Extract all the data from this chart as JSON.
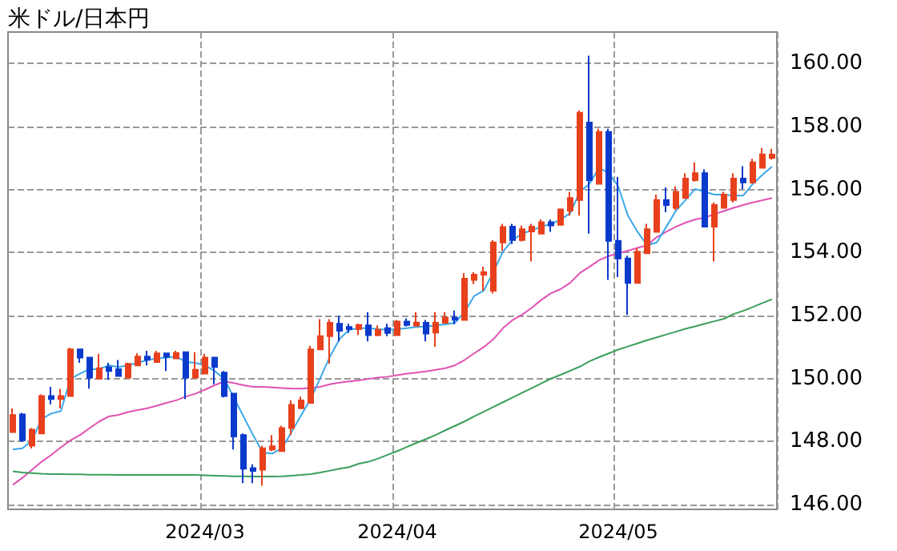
{
  "chart_data": {
    "type": "candlestick",
    "title": "米ドル/日本円",
    "categories": [
      null,
      null,
      null,
      null,
      null,
      null,
      null,
      null,
      null,
      null,
      null,
      null,
      null,
      null,
      null,
      null,
      null,
      null,
      null,
      null,
      "2024/03",
      null,
      null,
      null,
      null,
      null,
      null,
      null,
      null,
      null,
      null,
      null,
      null,
      null,
      null,
      null,
      null,
      null,
      null,
      null,
      "2024/04",
      null,
      null,
      null,
      null,
      null,
      null,
      null,
      null,
      null,
      null,
      null,
      null,
      null,
      null,
      null,
      null,
      null,
      null,
      null,
      null,
      null,
      null,
      "2024/05",
      null,
      null,
      null,
      null,
      null,
      null,
      null,
      null,
      null,
      null,
      null,
      null,
      null,
      null,
      null,
      null
    ],
    "ylim": [
      145.85,
      161.0
    ],
    "yticks": [
      {
        "value": 146,
        "label": "146.00"
      },
      {
        "value": 148,
        "label": "148.00"
      },
      {
        "value": 150,
        "label": "150.00"
      },
      {
        "value": 152,
        "label": "152.00"
      },
      {
        "value": 154,
        "label": "154.00"
      },
      {
        "value": 156,
        "label": "156.00"
      },
      {
        "value": 158,
        "label": "158.00"
      },
      {
        "value": 160,
        "label": "160.00"
      }
    ],
    "grid": true,
    "marker": "none",
    "line_style": "solid",
    "series": [
      {
        "type": "line",
        "color": "#e052b4",
        "values": [
          146.63,
          146.85,
          147.11,
          147.36,
          147.58,
          147.82,
          148.04,
          148.21,
          148.43,
          148.64,
          148.8,
          148.85,
          148.94,
          149.0,
          149.06,
          149.14,
          149.23,
          149.31,
          149.43,
          149.52,
          149.65,
          149.79,
          149.91,
          149.86,
          149.79,
          149.74,
          149.74,
          149.72,
          149.7,
          149.68,
          149.68,
          149.7,
          149.74,
          149.82,
          149.87,
          149.91,
          149.94,
          149.99,
          150.03,
          150.06,
          150.11,
          150.16,
          150.19,
          150.23,
          150.28,
          150.33,
          150.42,
          150.59,
          150.8,
          151.0,
          151.25,
          151.6,
          151.86,
          152.03,
          152.25,
          152.5,
          152.71,
          152.84,
          153.04,
          153.35,
          153.55,
          153.76,
          153.89,
          153.98,
          154.06,
          154.15,
          154.23,
          154.49,
          154.66,
          154.82,
          154.95,
          155.05,
          155.11,
          155.22,
          155.32,
          155.42,
          155.51,
          155.59,
          155.66,
          155.73
        ]
      },
      {
        "type": "line",
        "color": "#3a9e5c",
        "values": [
          147.06,
          147.02,
          147.0,
          146.98,
          146.97,
          146.97,
          146.96,
          146.96,
          146.95,
          146.95,
          146.95,
          146.94,
          146.94,
          146.94,
          146.94,
          146.94,
          146.94,
          146.94,
          146.94,
          146.94,
          146.93,
          146.92,
          146.91,
          146.9,
          146.9,
          146.89,
          146.89,
          146.89,
          146.9,
          146.92,
          146.94,
          146.97,
          147.02,
          147.08,
          147.14,
          147.19,
          147.3,
          147.36,
          147.46,
          147.58,
          147.7,
          147.83,
          147.96,
          148.08,
          148.21,
          148.36,
          148.5,
          148.64,
          148.8,
          148.95,
          149.1,
          149.25,
          149.4,
          149.55,
          149.7,
          149.85,
          150.0,
          150.12,
          150.25,
          150.38,
          150.55,
          150.68,
          150.8,
          150.92,
          151.02,
          151.12,
          151.22,
          151.31,
          151.4,
          151.49,
          151.58,
          151.66,
          151.74,
          151.82,
          151.9,
          152.05,
          152.15,
          152.27,
          152.4,
          152.52
        ]
      },
      {
        "type": "line",
        "color": "#3aa8e8",
        "values": [
          147.75,
          147.79,
          148.04,
          148.72,
          148.89,
          148.97,
          149.99,
          150.16,
          150.3,
          150.3,
          150.42,
          150.37,
          150.42,
          150.5,
          150.59,
          150.64,
          150.67,
          150.7,
          150.53,
          150.5,
          150.42,
          150.24,
          149.99,
          149.4,
          148.8,
          148.21,
          147.65,
          147.62,
          147.79,
          148.3,
          148.84,
          149.35,
          150.03,
          150.7,
          151.26,
          151.55,
          151.6,
          151.6,
          151.57,
          151.55,
          151.57,
          151.6,
          151.64,
          151.65,
          151.69,
          151.72,
          151.77,
          152.11,
          152.62,
          152.79,
          153.38,
          154.03,
          154.4,
          154.6,
          154.71,
          154.82,
          154.91,
          155.05,
          155.25,
          155.93,
          156.18,
          156.69,
          156.52,
          156.1,
          155.17,
          154.66,
          154.23,
          154.32,
          154.82,
          155.33,
          155.67,
          156.02,
          155.93,
          155.84,
          155.84,
          155.81,
          155.81,
          156.18,
          156.47,
          156.73
        ]
      },
      {
        "ohlc": [
          [
            148.3,
            149.05,
            148.28,
            148.84
          ],
          [
            148.86,
            148.91,
            147.99,
            148.04
          ],
          [
            147.87,
            148.43,
            147.78,
            148.38
          ],
          [
            148.26,
            149.5,
            148.26,
            149.45
          ],
          [
            149.45,
            149.74,
            149.18,
            149.35
          ],
          [
            149.35,
            149.67,
            149.06,
            149.45
          ],
          [
            149.45,
            150.98,
            149.45,
            150.93
          ],
          [
            150.93,
            150.93,
            150.5,
            150.67
          ],
          [
            150.67,
            150.67,
            149.68,
            150.03
          ],
          [
            150.0,
            150.79,
            150.0,
            150.33
          ],
          [
            150.36,
            150.5,
            149.96,
            150.24
          ],
          [
            150.3,
            150.59,
            150.08,
            150.08
          ],
          [
            150.03,
            150.5,
            150.03,
            150.47
          ],
          [
            150.42,
            150.8,
            150.42,
            150.7
          ],
          [
            150.7,
            150.88,
            150.42,
            150.6
          ],
          [
            150.53,
            150.88,
            150.53,
            150.8
          ],
          [
            150.8,
            150.8,
            150.24,
            150.69
          ],
          [
            150.64,
            150.88,
            150.64,
            150.81
          ],
          [
            150.84,
            150.84,
            149.35,
            150.03
          ],
          [
            150.03,
            150.84,
            150.03,
            150.28
          ],
          [
            150.16,
            150.79,
            150.16,
            150.67
          ],
          [
            150.67,
            150.67,
            149.82,
            150.37
          ],
          [
            150.19,
            150.24,
            149.4,
            149.45
          ],
          [
            149.52,
            149.52,
            147.75,
            148.16
          ],
          [
            148.21,
            148.26,
            146.68,
            147.14
          ],
          [
            147.16,
            147.28,
            146.68,
            147.07
          ],
          [
            147.11,
            147.87,
            146.6,
            147.79
          ],
          [
            147.75,
            148.21,
            147.7,
            147.85
          ],
          [
            147.7,
            148.5,
            147.7,
            148.43
          ],
          [
            148.43,
            149.31,
            148.21,
            149.17
          ],
          [
            149.06,
            149.43,
            149.06,
            149.31
          ],
          [
            149.23,
            151.04,
            149.23,
            150.93
          ],
          [
            150.93,
            151.89,
            150.93,
            151.35
          ],
          [
            151.35,
            151.89,
            150.47,
            151.77
          ],
          [
            151.74,
            151.99,
            151.18,
            151.52
          ],
          [
            151.64,
            151.74,
            151.45,
            151.57
          ],
          [
            151.57,
            151.74,
            151.38,
            151.7
          ],
          [
            151.69,
            152.11,
            151.18,
            151.38
          ],
          [
            151.38,
            151.69,
            151.35,
            151.55
          ],
          [
            151.6,
            151.74,
            151.35,
            151.45
          ],
          [
            151.38,
            151.86,
            151.38,
            151.81
          ],
          [
            151.81,
            151.91,
            151.65,
            151.7
          ],
          [
            151.68,
            152.11,
            151.68,
            151.78
          ],
          [
            151.77,
            151.86,
            151.18,
            151.43
          ],
          [
            151.46,
            152.11,
            151.01,
            151.77
          ],
          [
            151.77,
            152.11,
            151.77,
            151.94
          ],
          [
            151.94,
            152.16,
            151.72,
            151.87
          ],
          [
            151.86,
            153.35,
            151.86,
            153.17
          ],
          [
            153.13,
            153.38,
            153.0,
            153.3
          ],
          [
            153.3,
            153.55,
            152.79,
            153.38
          ],
          [
            152.79,
            154.4,
            152.7,
            154.32
          ],
          [
            154.32,
            154.91,
            154.06,
            154.81
          ],
          [
            154.82,
            154.91,
            154.27,
            154.4
          ],
          [
            154.4,
            154.86,
            154.35,
            154.74
          ],
          [
            154.67,
            154.91,
            153.72,
            154.82
          ],
          [
            154.6,
            155.05,
            154.6,
            154.96
          ],
          [
            154.96,
            155.05,
            154.66,
            154.86
          ],
          [
            154.88,
            155.4,
            154.88,
            155.37
          ],
          [
            155.33,
            155.93,
            155.17,
            155.73
          ],
          [
            155.67,
            158.51,
            155.17,
            158.44
          ],
          [
            158.13,
            160.25,
            154.6,
            156.3
          ],
          [
            156.18,
            157.93,
            156.18,
            157.83
          ],
          [
            157.83,
            157.93,
            153.13,
            154.37
          ],
          [
            154.37,
            156.4,
            153.22,
            153.81
          ],
          [
            153.81,
            153.9,
            152.03,
            153.04
          ],
          [
            153.04,
            154.15,
            153.04,
            154.03
          ],
          [
            153.98,
            154.91,
            153.98,
            154.74
          ],
          [
            154.66,
            155.84,
            154.66,
            155.67
          ],
          [
            155.67,
            156.07,
            155.28,
            155.51
          ],
          [
            155.42,
            156.1,
            155.35,
            155.93
          ],
          [
            155.73,
            156.52,
            155.73,
            156.35
          ],
          [
            156.3,
            156.86,
            156.25,
            156.52
          ],
          [
            156.52,
            156.64,
            154.82,
            154.82
          ],
          [
            154.82,
            155.59,
            153.72,
            155.51
          ],
          [
            155.42,
            155.93,
            155.42,
            155.84
          ],
          [
            155.67,
            156.52,
            155.59,
            156.35
          ],
          [
            156.35,
            156.74,
            156.02,
            156.23
          ],
          [
            156.23,
            156.98,
            156.18,
            156.86
          ],
          [
            156.69,
            157.32,
            156.69,
            157.12
          ],
          [
            157.0,
            157.29,
            156.95,
            157.11
          ]
        ],
        "colors": [
          "#e8401c",
          "#0a3acc",
          "#e8401c",
          "#e8401c",
          "#0a3acc",
          "#e8401c",
          "#e8401c",
          "#0a3acc",
          "#0a3acc",
          "#e8401c",
          "#0a3acc",
          "#0a3acc",
          "#e8401c",
          "#e8401c",
          "#0a3acc",
          "#e8401c",
          "#0a3acc",
          "#e8401c",
          "#0a3acc",
          "#e8401c",
          "#e8401c",
          "#0a3acc",
          "#0a3acc",
          "#0a3acc",
          "#0a3acc",
          "#0a3acc",
          "#e8401c",
          "#e8401c",
          "#e8401c",
          "#e8401c",
          "#e8401c",
          "#e8401c",
          "#e8401c",
          "#e8401c",
          "#0a3acc",
          "#0a3acc",
          "#e8401c",
          "#0a3acc",
          "#e8401c",
          "#0a3acc",
          "#e8401c",
          "#0a3acc",
          "#e8401c",
          "#0a3acc",
          "#e8401c",
          "#e8401c",
          "#0a3acc",
          "#e8401c",
          "#e8401c",
          "#e8401c",
          "#e8401c",
          "#e8401c",
          "#0a3acc",
          "#e8401c",
          "#e8401c",
          "#e8401c",
          "#0a3acc",
          "#e8401c",
          "#e8401c",
          "#e8401c",
          "#0a3acc",
          "#e8401c",
          "#0a3acc",
          "#0a3acc",
          "#0a3acc",
          "#e8401c",
          "#e8401c",
          "#e8401c",
          "#0a3acc",
          "#e8401c",
          "#e8401c",
          "#e8401c",
          "#0a3acc",
          "#e8401c",
          "#e8401c",
          "#e8401c",
          "#0a3acc",
          "#e8401c",
          "#e8401c",
          "#e8401c"
        ]
      }
    ]
  }
}
